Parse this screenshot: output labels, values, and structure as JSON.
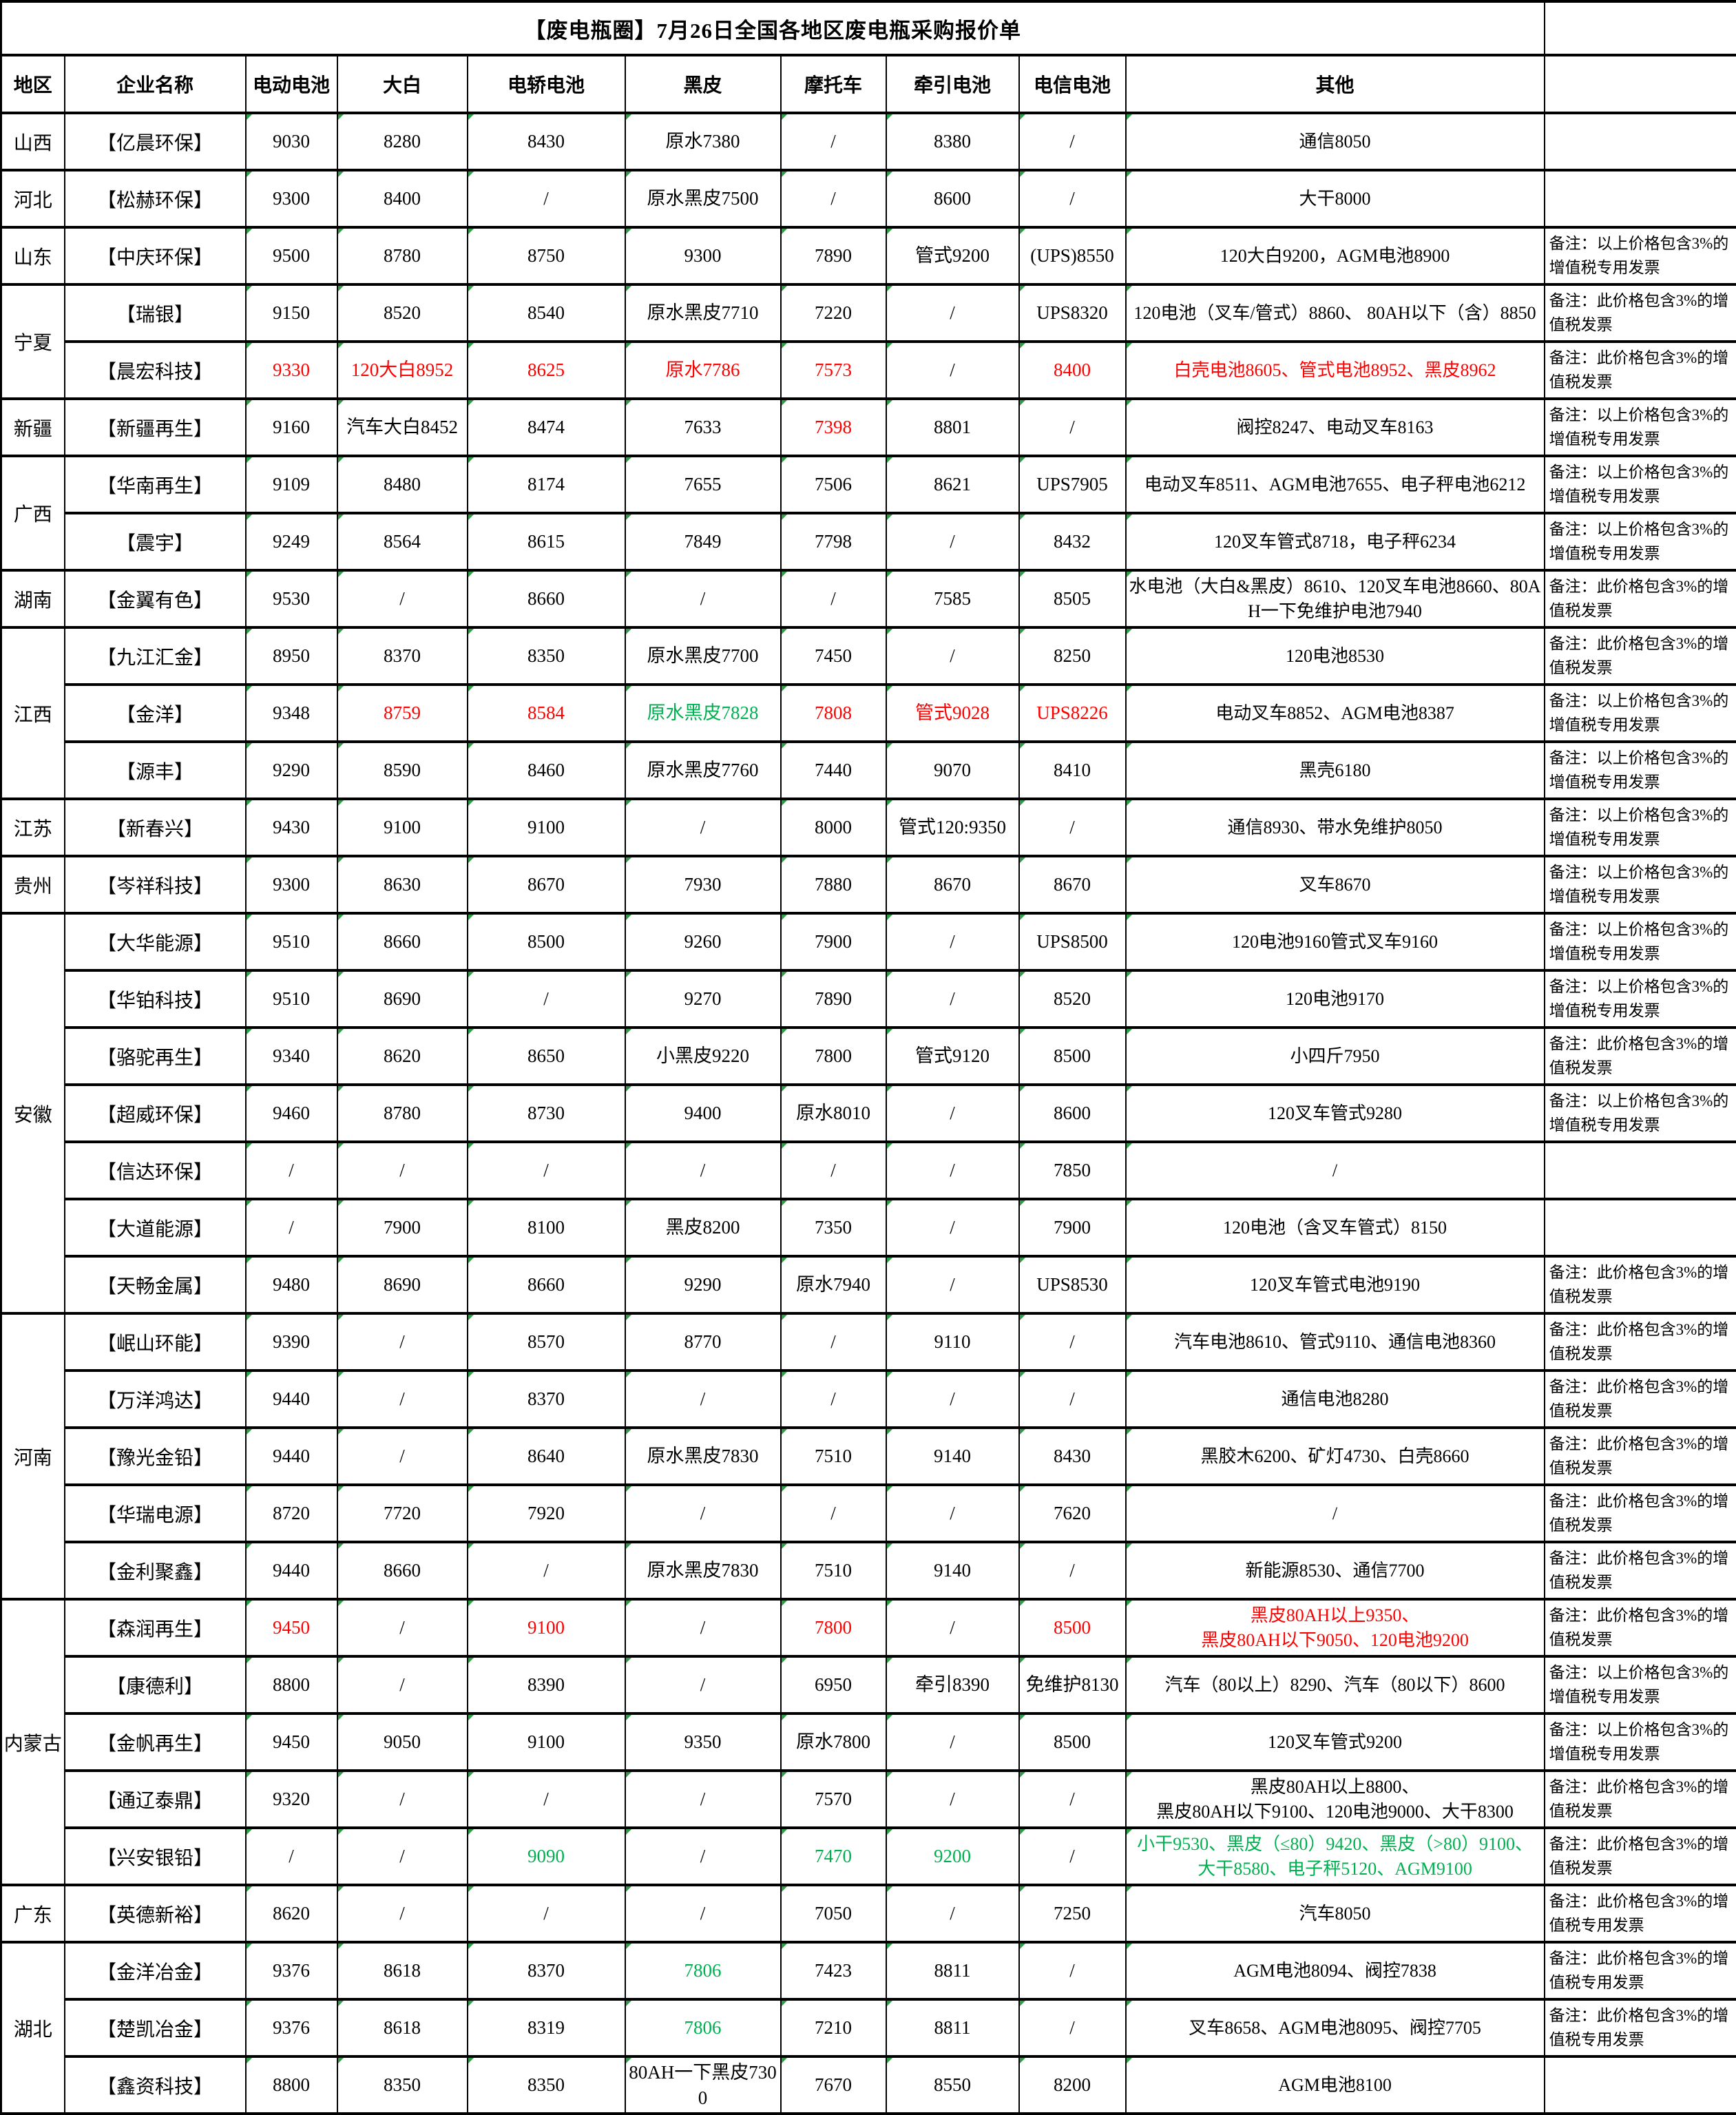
{
  "title": "【废电瓶圈】7月26日全国各地区废电瓶采购报价单",
  "columns": [
    "地区",
    "企业名称",
    "电动电池",
    "大白",
    "电轿电池",
    "黑皮",
    "摩托车",
    "牵引电池",
    "电信电池",
    "其他",
    ""
  ],
  "colors": {
    "red": "#ff0000",
    "green": "#00b050",
    "black": "#000000",
    "corner_indicator_green": "#2f9e44"
  },
  "remarks": {
    "A": "备注：以上价格包含3%的增值税专用发票",
    "B": "备注：此价格包含3%的增值税发票",
    "C": "备注：此价格包含3%的增值税专用发票",
    "E": ""
  },
  "rows": [
    {
      "region": "山西",
      "region_span": 1,
      "company": "【亿晨环保】",
      "values": [
        "9030",
        "8280",
        "8430",
        "原水7380",
        "/",
        "8380",
        "/"
      ],
      "other": {
        "lines": [
          "通信8050"
        ],
        "c": ""
      },
      "remark": "E"
    },
    {
      "region": "河北",
      "region_span": 1,
      "company": "【松赫环保】",
      "values": [
        "9300",
        "8400",
        "/",
        "原水黑皮7500",
        "/",
        "8600",
        "/"
      ],
      "other": {
        "lines": [
          "大干8000"
        ],
        "c": ""
      },
      "remark": "E"
    },
    {
      "region": "山东",
      "region_span": 1,
      "company": "【中庆环保】",
      "values": [
        "9500",
        "8780",
        "8750",
        "9300",
        "7890",
        "管式9200",
        "(UPS)8550"
      ],
      "other": {
        "lines": [
          "120大白9200，AGM电池8900"
        ],
        "c": ""
      },
      "remark": "A"
    },
    {
      "region": "宁夏",
      "region_span": 2,
      "company": "【瑞银】",
      "values": [
        "9150",
        "8520",
        "8540",
        "原水黑皮7710",
        "7220",
        "/",
        "UPS8320"
      ],
      "other": {
        "lines": [
          "120电池（叉车/管式）8860、 80AH以下（含）8850"
        ],
        "c": ""
      },
      "remark": "B"
    },
    {
      "company": "【晨宏科技】",
      "values": [
        {
          "t": "9330",
          "c": "r"
        },
        {
          "t": "120大白8952",
          "c": "r"
        },
        {
          "t": "8625",
          "c": "r"
        },
        {
          "t": "原水7786",
          "c": "r"
        },
        {
          "t": "7573",
          "c": "r"
        },
        "/",
        {
          "t": "8400",
          "c": "r"
        }
      ],
      "other": {
        "lines": [
          "白壳电池8605、管式电池8952、黑皮8962"
        ],
        "c": "r"
      },
      "remark": "B"
    },
    {
      "region": "新疆",
      "region_span": 1,
      "company": "【新疆再生】",
      "values": [
        "9160",
        "汽车大白8452",
        "8474",
        "7633",
        {
          "t": "7398",
          "c": "r"
        },
        "8801",
        "/"
      ],
      "other": {
        "lines": [
          "阀控8247、电动叉车8163"
        ],
        "c": ""
      },
      "remark": "A"
    },
    {
      "region": "广西",
      "region_span": 2,
      "company": "【华南再生】",
      "values": [
        "9109",
        "8480",
        "8174",
        "7655",
        "7506",
        "8621",
        "UPS7905"
      ],
      "other": {
        "lines": [
          "电动叉车8511、AGM电池7655、电子秤电池6212"
        ],
        "c": ""
      },
      "remark": "A"
    },
    {
      "company": "【震宇】",
      "values": [
        "9249",
        "8564",
        "8615",
        "7849",
        "7798",
        "/",
        "8432"
      ],
      "other": {
        "lines": [
          "120叉车管式8718，电子秤6234"
        ],
        "c": ""
      },
      "remark": "A"
    },
    {
      "region": "湖南",
      "region_span": 1,
      "company": "【金翼有色】",
      "values": [
        "9530",
        "/",
        "8660",
        "/",
        "/",
        "7585",
        "8505"
      ],
      "other": {
        "lines": [
          "水电池（大白&黑皮）8610、120叉车电池8660、80AH一下免维护电池7940"
        ],
        "c": ""
      },
      "remark": "B"
    },
    {
      "region": "江西",
      "region_span": 3,
      "company": "【九江汇金】",
      "values": [
        "8950",
        "8370",
        "8350",
        "原水黑皮7700",
        "7450",
        "/",
        "8250"
      ],
      "other": {
        "lines": [
          "120电池8530"
        ],
        "c": ""
      },
      "remark": "B"
    },
    {
      "company": "【金洋】",
      "values": [
        "9348",
        {
          "t": "8759",
          "c": "r"
        },
        {
          "t": "8584",
          "c": "r"
        },
        {
          "t": "原水黑皮7828",
          "c": "g"
        },
        {
          "t": "7808",
          "c": "r"
        },
        {
          "t": "管式9028",
          "c": "r"
        },
        {
          "t": "UPS8226",
          "c": "r"
        }
      ],
      "other": {
        "lines": [
          "电动叉车8852、AGM电池8387"
        ],
        "c": ""
      },
      "remark": "A"
    },
    {
      "company": "【源丰】",
      "values": [
        "9290",
        "8590",
        "8460",
        "原水黑皮7760",
        "7440",
        "9070",
        "8410"
      ],
      "other": {
        "lines": [
          "黑壳6180"
        ],
        "c": ""
      },
      "remark": "A"
    },
    {
      "region": "江苏",
      "region_span": 1,
      "company": "【新春兴】",
      "values": [
        "9430",
        "9100",
        "9100",
        "/",
        "8000",
        "管式120:9350",
        "/"
      ],
      "other": {
        "lines": [
          "通信8930、带水免维护8050"
        ],
        "c": ""
      },
      "remark": "A"
    },
    {
      "region": "贵州",
      "region_span": 1,
      "company": "【岑祥科技】",
      "values": [
        "9300",
        "8630",
        "8670",
        "7930",
        "7880",
        "8670",
        "8670"
      ],
      "other": {
        "lines": [
          "叉车8670"
        ],
        "c": ""
      },
      "remark": "A"
    },
    {
      "region": "安徽",
      "region_span": 7,
      "company": "【大华能源】",
      "values": [
        "9510",
        "8660",
        "8500",
        "9260",
        "7900",
        "/",
        "UPS8500"
      ],
      "other": {
        "lines": [
          "120电池9160管式叉车9160"
        ],
        "c": ""
      },
      "remark": "A"
    },
    {
      "company": "【华铂科技】",
      "values": [
        "9510",
        "8690",
        "/",
        "9270",
        "7890",
        "/",
        "8520"
      ],
      "other": {
        "lines": [
          "120电池9170"
        ],
        "c": ""
      },
      "remark": "A"
    },
    {
      "company": "【骆驼再生】",
      "values": [
        "9340",
        "8620",
        "8650",
        "小黑皮9220",
        "7800",
        "管式9120",
        "8500"
      ],
      "other": {
        "lines": [
          "小四斤7950"
        ],
        "c": ""
      },
      "remark": "B"
    },
    {
      "company": "【超威环保】",
      "values": [
        "9460",
        "8780",
        "8730",
        "9400",
        "原水8010",
        "/",
        "8600"
      ],
      "other": {
        "lines": [
          "120叉车管式9280"
        ],
        "c": ""
      },
      "remark": "A"
    },
    {
      "company": "【信达环保】",
      "values": [
        "/",
        "/",
        "/",
        "/",
        "/",
        "/",
        "7850"
      ],
      "other": {
        "lines": [
          "/"
        ],
        "c": ""
      },
      "remark": "E"
    },
    {
      "company": "【大道能源】",
      "values": [
        "/",
        "7900",
        "8100",
        "黑皮8200",
        "7350",
        "/",
        "7900"
      ],
      "other": {
        "lines": [
          "120电池（含叉车管式）8150"
        ],
        "c": ""
      },
      "remark": "E"
    },
    {
      "company": "【天畅金属】",
      "values": [
        "9480",
        "8690",
        "8660",
        "9290",
        "原水7940",
        "/",
        "UPS8530"
      ],
      "other": {
        "lines": [
          "120叉车管式电池9190"
        ],
        "c": ""
      },
      "remark": "B"
    },
    {
      "region": "河南",
      "region_span": 5,
      "company": "【岷山环能】",
      "values": [
        "9390",
        "/",
        "8570",
        "8770",
        "/",
        "9110",
        "/"
      ],
      "other": {
        "lines": [
          "汽车电池8610、管式9110、通信电池8360"
        ],
        "c": ""
      },
      "remark": "B"
    },
    {
      "company": "【万洋鸿达】",
      "values": [
        "9440",
        "/",
        "8370",
        "/",
        "/",
        "/",
        "/"
      ],
      "other": {
        "lines": [
          "通信电池8280"
        ],
        "c": ""
      },
      "remark": "B"
    },
    {
      "company": "【豫光金铅】",
      "values": [
        "9440",
        "/",
        "8640",
        "原水黑皮7830",
        "7510",
        "9140",
        "8430"
      ],
      "other": {
        "lines": [
          "黑胶木6200、矿灯4730、白壳8660"
        ],
        "c": ""
      },
      "remark": "B"
    },
    {
      "company": "【华瑞电源】",
      "values": [
        "8720",
        "7720",
        "7920",
        "/",
        "/",
        "/",
        "7620"
      ],
      "other": {
        "lines": [
          "/"
        ],
        "c": ""
      },
      "remark": "B"
    },
    {
      "company": "【金利聚鑫】",
      "values": [
        "9440",
        "8660",
        "/",
        "原水黑皮7830",
        "7510",
        "9140",
        "/"
      ],
      "other": {
        "lines": [
          "新能源8530、通信7700"
        ],
        "c": ""
      },
      "remark": "B"
    },
    {
      "region": "内蒙古",
      "region_span": 5,
      "company": "【森润再生】",
      "values": [
        {
          "t": "9450",
          "c": "r"
        },
        "/",
        {
          "t": "9100",
          "c": "r"
        },
        "/",
        {
          "t": "7800",
          "c": "r"
        },
        "/",
        {
          "t": "8500",
          "c": "r"
        }
      ],
      "other": {
        "lines": [
          "黑皮80AH以上9350、",
          "黑皮80AH以下9050、120电池9200"
        ],
        "c": "r"
      },
      "remark": "B"
    },
    {
      "company": "【康德利】",
      "values": [
        "8800",
        "/",
        "8390",
        "/",
        "6950",
        "牵引8390",
        "免维护8130"
      ],
      "other": {
        "lines": [
          "汽车（80以上）8290、汽车（80以下）8600"
        ],
        "c": ""
      },
      "remark": "A"
    },
    {
      "company": "【金帆再生】",
      "values": [
        "9450",
        "9050",
        "9100",
        "9350",
        "原水7800",
        "/",
        "8500"
      ],
      "other": {
        "lines": [
          "120叉车管式9200"
        ],
        "c": ""
      },
      "remark": "A"
    },
    {
      "company": "【通辽泰鼎】",
      "values": [
        "9320",
        "/",
        "/",
        "/",
        "7570",
        "/",
        "/"
      ],
      "other": {
        "lines": [
          "黑皮80AH以上8800、",
          "黑皮80AH以下9100、120电池9000、大干8300"
        ],
        "c": ""
      },
      "remark": "B"
    },
    {
      "company": "【兴安银铅】",
      "values": [
        "/",
        "/",
        {
          "t": "9090",
          "c": "g"
        },
        "/",
        {
          "t": "7470",
          "c": "g"
        },
        {
          "t": "9200",
          "c": "g"
        },
        "/"
      ],
      "other": {
        "lines": [
          "小干9530、黑皮（≤80）9420、黑皮（>80）9100、",
          "大干8580、电子秤5120、AGM9100"
        ],
        "c": "g"
      },
      "remark": "B"
    },
    {
      "region": "广东",
      "region_span": 1,
      "company": "【英德新裕】",
      "values": [
        "8620",
        "/",
        "/",
        "/",
        "7050",
        "/",
        "7250"
      ],
      "other": {
        "lines": [
          "汽车8050"
        ],
        "c": ""
      },
      "remark": "C"
    },
    {
      "region": "湖北",
      "region_span": 3,
      "company": "【金洋冶金】",
      "values": [
        "9376",
        "8618",
        "8370",
        {
          "t": "7806",
          "c": "g"
        },
        "7423",
        "8811",
        "/"
      ],
      "other": {
        "lines": [
          "AGM电池8094、阀控7838"
        ],
        "c": ""
      },
      "remark": "C"
    },
    {
      "company": "【楚凯冶金】",
      "values": [
        "9376",
        "8618",
        "8319",
        {
          "t": "7806",
          "c": "g"
        },
        "7210",
        "8811",
        "/"
      ],
      "other": {
        "lines": [
          "叉车8658、AGM电池8095、阀控7705"
        ],
        "c": ""
      },
      "remark": "C"
    },
    {
      "company": "【鑫资科技】",
      "values": [
        "8800",
        "8350",
        "8350",
        "80AH一下黑皮7300",
        "7670",
        "8550",
        "8200"
      ],
      "other": {
        "lines": [
          "AGM电池8100"
        ],
        "c": ""
      },
      "remark": "E"
    }
  ]
}
